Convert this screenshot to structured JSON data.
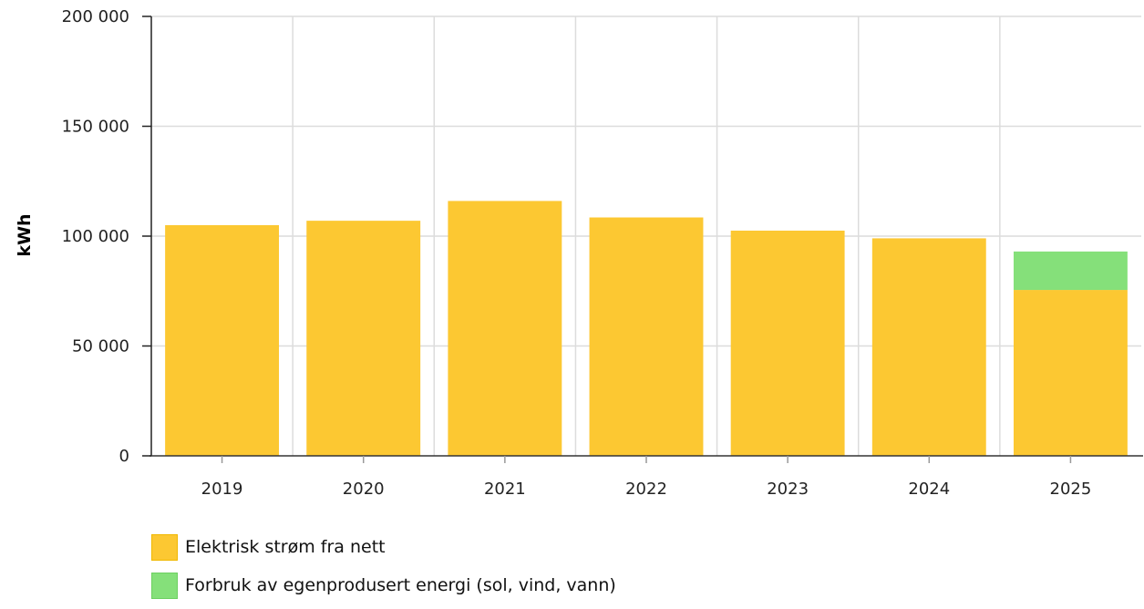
{
  "chart_data": {
    "type": "bar",
    "stacked": true,
    "categories": [
      "2019",
      "2020",
      "2021",
      "2022",
      "2023",
      "2024",
      "2025"
    ],
    "series": [
      {
        "name": "Elektrisk strøm fra nett",
        "color": "#fcc832",
        "values": [
          105000,
          107000,
          116000,
          108500,
          102500,
          99000,
          75500
        ]
      },
      {
        "name": "Forbruk av egenprodusert energi (sol, vind, vann)",
        "color": "#85e07a",
        "values": [
          0,
          0,
          0,
          0,
          0,
          0,
          17500
        ]
      }
    ],
    "ylabel": "kWh",
    "xlabel": "",
    "title": "",
    "ylim": [
      0,
      200000
    ],
    "yticks": [
      0,
      50000,
      100000,
      150000,
      200000
    ],
    "ytick_labels": [
      "0",
      "50 000",
      "100 000",
      "150 000",
      "200 000"
    ],
    "grid": true,
    "legend_position": "bottom-left"
  }
}
